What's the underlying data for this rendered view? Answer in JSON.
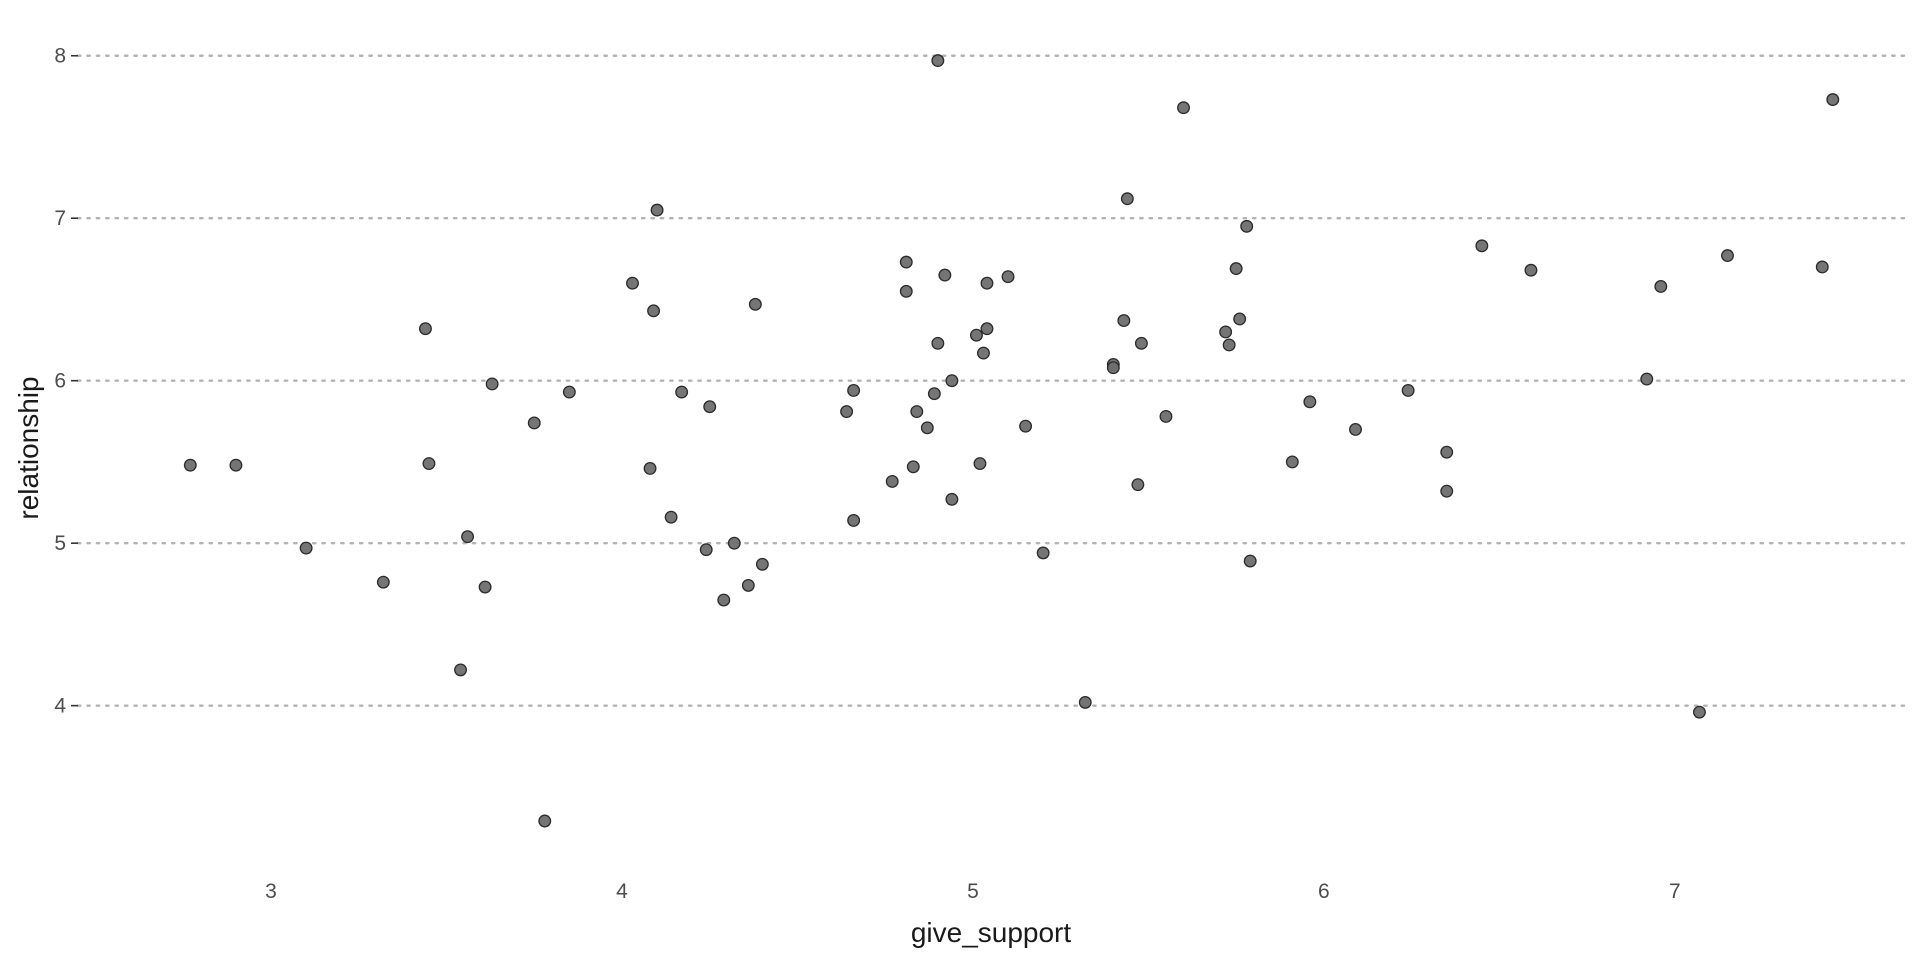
{
  "chart_data": {
    "type": "scatter",
    "xlabel": "give_support",
    "ylabel": "relationship",
    "xlim": [
      2.45,
      7.67
    ],
    "ylim": [
      3.05,
      8.22
    ],
    "xticks": [
      3,
      4,
      5,
      6,
      7
    ],
    "yticks": [
      4,
      5,
      6,
      7,
      8
    ],
    "grid": "horizontal-dotted",
    "point_color": "#6e6e6e",
    "points": [
      {
        "x": 2.77,
        "y": 5.48
      },
      {
        "x": 2.9,
        "y": 5.48
      },
      {
        "x": 3.1,
        "y": 4.97
      },
      {
        "x": 3.32,
        "y": 4.76
      },
      {
        "x": 3.44,
        "y": 6.32
      },
      {
        "x": 3.45,
        "y": 5.49
      },
      {
        "x": 3.54,
        "y": 4.22
      },
      {
        "x": 3.56,
        "y": 5.04
      },
      {
        "x": 3.61,
        "y": 4.73
      },
      {
        "x": 3.63,
        "y": 5.98
      },
      {
        "x": 3.75,
        "y": 5.74
      },
      {
        "x": 3.78,
        "y": 3.29
      },
      {
        "x": 3.85,
        "y": 5.93
      },
      {
        "x": 4.03,
        "y": 6.6
      },
      {
        "x": 4.08,
        "y": 5.46
      },
      {
        "x": 4.09,
        "y": 6.43
      },
      {
        "x": 4.1,
        "y": 7.05
      },
      {
        "x": 4.14,
        "y": 5.16
      },
      {
        "x": 4.17,
        "y": 5.93
      },
      {
        "x": 4.24,
        "y": 4.96
      },
      {
        "x": 4.25,
        "y": 5.84
      },
      {
        "x": 4.29,
        "y": 4.65
      },
      {
        "x": 4.32,
        "y": 5.0
      },
      {
        "x": 4.36,
        "y": 4.74
      },
      {
        "x": 4.38,
        "y": 6.47
      },
      {
        "x": 4.4,
        "y": 4.87
      },
      {
        "x": 4.64,
        "y": 5.81
      },
      {
        "x": 4.66,
        "y": 5.94
      },
      {
        "x": 4.66,
        "y": 5.14
      },
      {
        "x": 4.77,
        "y": 5.38
      },
      {
        "x": 4.81,
        "y": 6.73
      },
      {
        "x": 4.81,
        "y": 6.55
      },
      {
        "x": 4.83,
        "y": 5.47
      },
      {
        "x": 4.84,
        "y": 5.81
      },
      {
        "x": 4.87,
        "y": 5.71
      },
      {
        "x": 4.89,
        "y": 5.92
      },
      {
        "x": 4.9,
        "y": 7.97
      },
      {
        "x": 4.9,
        "y": 6.23
      },
      {
        "x": 4.92,
        "y": 6.65
      },
      {
        "x": 4.94,
        "y": 6.0
      },
      {
        "x": 4.94,
        "y": 5.27
      },
      {
        "x": 5.01,
        "y": 6.28
      },
      {
        "x": 5.02,
        "y": 5.49
      },
      {
        "x": 5.03,
        "y": 6.17
      },
      {
        "x": 5.04,
        "y": 6.32
      },
      {
        "x": 5.04,
        "y": 6.6
      },
      {
        "x": 5.1,
        "y": 6.64
      },
      {
        "x": 5.15,
        "y": 5.72
      },
      {
        "x": 5.2,
        "y": 4.94
      },
      {
        "x": 5.32,
        "y": 4.02
      },
      {
        "x": 5.4,
        "y": 6.1
      },
      {
        "x": 5.4,
        "y": 6.08
      },
      {
        "x": 5.43,
        "y": 6.37
      },
      {
        "x": 5.44,
        "y": 7.12
      },
      {
        "x": 5.47,
        "y": 5.36
      },
      {
        "x": 5.48,
        "y": 6.23
      },
      {
        "x": 5.55,
        "y": 5.78
      },
      {
        "x": 5.6,
        "y": 7.68
      },
      {
        "x": 5.72,
        "y": 6.3
      },
      {
        "x": 5.73,
        "y": 6.22
      },
      {
        "x": 5.75,
        "y": 6.69
      },
      {
        "x": 5.76,
        "y": 6.38
      },
      {
        "x": 5.78,
        "y": 6.95
      },
      {
        "x": 5.79,
        "y": 4.89
      },
      {
        "x": 5.91,
        "y": 5.5
      },
      {
        "x": 5.96,
        "y": 5.87
      },
      {
        "x": 6.09,
        "y": 5.7
      },
      {
        "x": 6.24,
        "y": 5.94
      },
      {
        "x": 6.35,
        "y": 5.56
      },
      {
        "x": 6.35,
        "y": 5.32
      },
      {
        "x": 6.45,
        "y": 6.83
      },
      {
        "x": 6.59,
        "y": 6.68
      },
      {
        "x": 6.92,
        "y": 6.01
      },
      {
        "x": 6.96,
        "y": 6.58
      },
      {
        "x": 7.07,
        "y": 3.96
      },
      {
        "x": 7.15,
        "y": 6.77
      },
      {
        "x": 7.42,
        "y": 6.7
      },
      {
        "x": 7.45,
        "y": 7.73
      }
    ]
  }
}
